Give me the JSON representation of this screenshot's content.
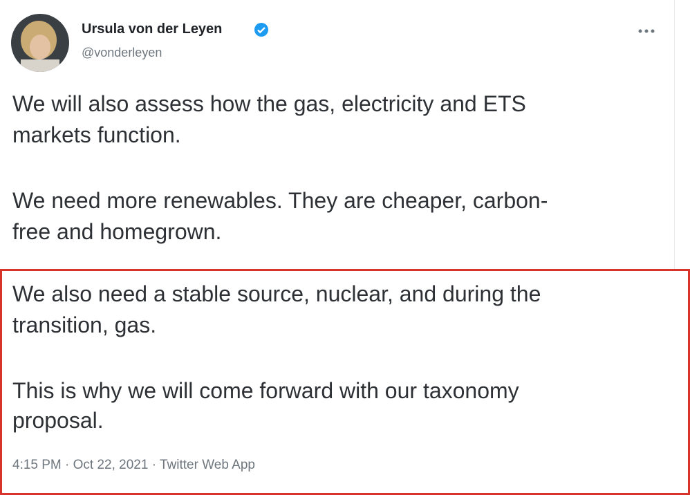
{
  "tweet": {
    "author": {
      "name": "Ursula von der Leyen",
      "handle": "@vonderleyen"
    },
    "paragraphs": [
      [
        "We will also assess how the gas, electricity and ETS",
        "markets function."
      ],
      [
        "We need more renewables. They are cheaper, carbon-",
        "free and homegrown."
      ],
      [
        "We also need a stable source, nuclear, and during the",
        "transition, gas."
      ],
      [
        "This is why we will come forward with our taxonomy",
        "proposal."
      ]
    ],
    "meta": "4:15 PM · Oct 22, 2021 · Twitter Web App"
  }
}
